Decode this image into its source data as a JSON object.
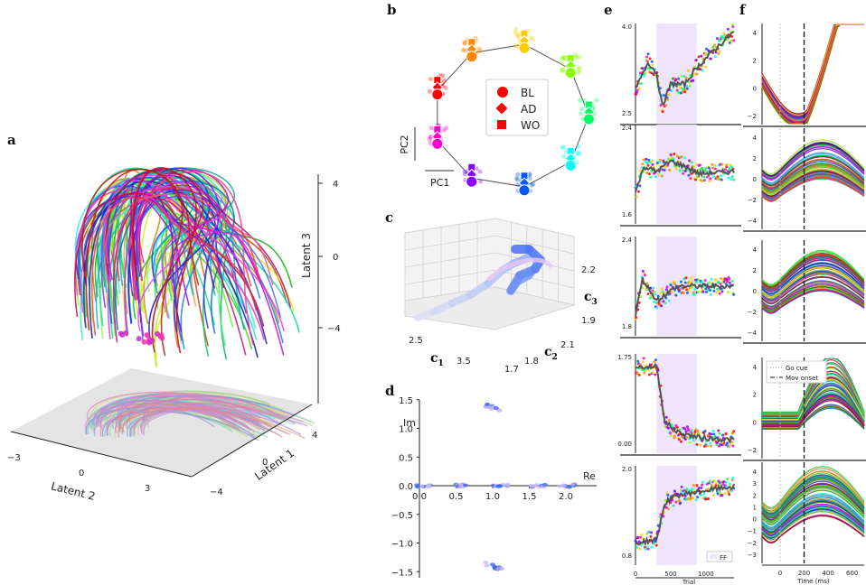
{
  "panels": {
    "a": "a",
    "b": "b",
    "c": "c",
    "d": "d",
    "e": "e",
    "f": "f"
  },
  "colors": {
    "rainbow": [
      "#ff0000",
      "#ff8800",
      "#ffcc00",
      "#88ff00",
      "#00ff66",
      "#00ffff",
      "#0055ff",
      "#8800ff",
      "#ff00cc"
    ],
    "ff_shade": "#eee4fb",
    "trace_dark": "#555555"
  },
  "chart_data": [
    {
      "panel": "a",
      "type": "line",
      "chart": "3d-trajectories",
      "zlabel": "Latent 3",
      "xlabel": "Latent 2",
      "ylabel": "Latent 1",
      "zticks": [
        "4",
        "0",
        "−4"
      ],
      "xticks": [
        "−3",
        "0",
        "3"
      ],
      "yticks": [
        "4",
        "0",
        "−4"
      ]
    },
    {
      "panel": "b",
      "type": "scatter",
      "chart": "pca-ring",
      "xlabel": "PC1",
      "ylabel": "PC2",
      "legend": [
        {
          "label": "BL",
          "marker": "circle"
        },
        {
          "label": "AD",
          "marker": "diamond"
        },
        {
          "label": "WO",
          "marker": "square"
        }
      ],
      "legend_position": "center",
      "points_angles_deg": [
        0,
        40,
        80,
        120,
        160,
        200,
        240,
        280,
        320
      ]
    },
    {
      "panel": "c",
      "type": "line",
      "chart": "3d-trajectory",
      "xlabel": "c",
      "xlabel_sub": "1",
      "ylabel": "c",
      "ylabel_sub": "2",
      "zlabel": "c",
      "zlabel_sub": "3",
      "xticks": [
        "2.5",
        "3.5"
      ],
      "yticks": [
        "1.7",
        "1.8",
        "2.1"
      ],
      "zticks": [
        "2.2",
        "1.9"
      ]
    },
    {
      "panel": "d",
      "type": "scatter",
      "chart": "eigenvalues",
      "xlabel": "Re",
      "ylabel": "Im",
      "xlim": [
        0.0,
        2.0
      ],
      "ylim": [
        -1.5,
        1.5
      ],
      "xticks": [
        "0.0",
        "0.5",
        "1.0",
        "1.5",
        "2.0"
      ],
      "yticks": [
        "1.5",
        "1.0",
        "0.5",
        "0.0",
        "−0.5",
        "−1.0",
        "−1.5"
      ],
      "clusters": [
        {
          "re": 0.95,
          "im": 1.38
        },
        {
          "re": 0.95,
          "im": -1.38
        },
        {
          "re": 0.0,
          "im": 0.0
        },
        {
          "re": 0.5,
          "im": 0.0
        },
        {
          "re": 1.05,
          "im": 0.0
        },
        {
          "re": 1.55,
          "im": 0.0
        },
        {
          "re": 1.95,
          "im": 0.0
        }
      ]
    },
    {
      "panel": "e",
      "type": "scatter",
      "chart": "trial-series",
      "xlabel": "Trial",
      "xlim": [
        0,
        1400
      ],
      "xticks": [
        "0",
        "500",
        "1000"
      ],
      "ff_start": 300,
      "ff_end": 870,
      "legend": "FF",
      "rows": [
        {
          "yticks": [
            "4.0",
            "2.5"
          ],
          "ylim": [
            2.3,
            4.1
          ],
          "profile": [
            [
              0,
              2.9
            ],
            [
              180,
              3.4
            ],
            [
              300,
              3.2
            ],
            [
              380,
              2.6
            ],
            [
              500,
              3.0
            ],
            [
              700,
              3.0
            ],
            [
              870,
              3.3
            ],
            [
              1100,
              3.6
            ],
            [
              1400,
              3.95
            ]
          ]
        },
        {
          "yticks": [
            "2.4",
            "1.6"
          ],
          "ylim": [
            1.5,
            2.45
          ],
          "profile": [
            [
              0,
              1.8
            ],
            [
              120,
              2.05
            ],
            [
              300,
              2.0
            ],
            [
              500,
              2.1
            ],
            [
              700,
              2.05
            ],
            [
              900,
              1.98
            ],
            [
              1400,
              2.0
            ]
          ]
        },
        {
          "yticks": [
            "2.4",
            "1.8"
          ],
          "ylim": [
            1.75,
            2.45
          ],
          "profile": [
            [
              0,
              1.9
            ],
            [
              100,
              2.15
            ],
            [
              300,
              2.0
            ],
            [
              600,
              2.1
            ],
            [
              900,
              2.1
            ],
            [
              1400,
              2.1
            ]
          ]
        },
        {
          "yticks": [
            "1.75",
            "0.00"
          ],
          "ylim": [
            -0.05,
            1.85
          ],
          "profile": [
            [
              0,
              1.6
            ],
            [
              300,
              1.6
            ],
            [
              420,
              0.55
            ],
            [
              600,
              0.35
            ],
            [
              900,
              0.25
            ],
            [
              1400,
              0.2
            ]
          ]
        },
        {
          "yticks": [
            "2.0",
            "0.8"
          ],
          "ylim": [
            0.75,
            2.1
          ],
          "profile": [
            [
              0,
              1.05
            ],
            [
              300,
              1.1
            ],
            [
              420,
              1.6
            ],
            [
              600,
              1.7
            ],
            [
              900,
              1.75
            ],
            [
              1400,
              1.82
            ]
          ]
        }
      ]
    },
    {
      "panel": "f",
      "type": "line",
      "chart": "time-courses",
      "xlabel": "Time (ms)",
      "xlim": [
        -150,
        700
      ],
      "xticks": [
        "0",
        "200",
        "400",
        "600"
      ],
      "legend": [
        {
          "label": "Go cue",
          "style": "dotted"
        },
        {
          "label": "Mov onset",
          "style": "dashdot"
        }
      ],
      "rows": [
        {
          "yticks": [
            "4",
            "2",
            "0",
            "−2"
          ],
          "ylim": [
            -3,
            5
          ]
        },
        {
          "yticks": [
            "4",
            "2",
            "0",
            "−2",
            "−4"
          ],
          "ylim": [
            -4.5,
            5
          ]
        },
        {
          "yticks": [
            "4",
            "2",
            "0",
            "−2",
            "−4"
          ],
          "ylim": [
            -4.5,
            5
          ]
        },
        {
          "yticks": [
            "4",
            "2",
            "0",
            "−2"
          ],
          "ylim": [
            -3,
            5
          ]
        },
        {
          "yticks": [
            "4",
            "3",
            "2",
            "1",
            "0",
            "−1",
            "−2",
            "−3"
          ],
          "ylim": [
            -3.5,
            4.5
          ]
        }
      ]
    }
  ]
}
